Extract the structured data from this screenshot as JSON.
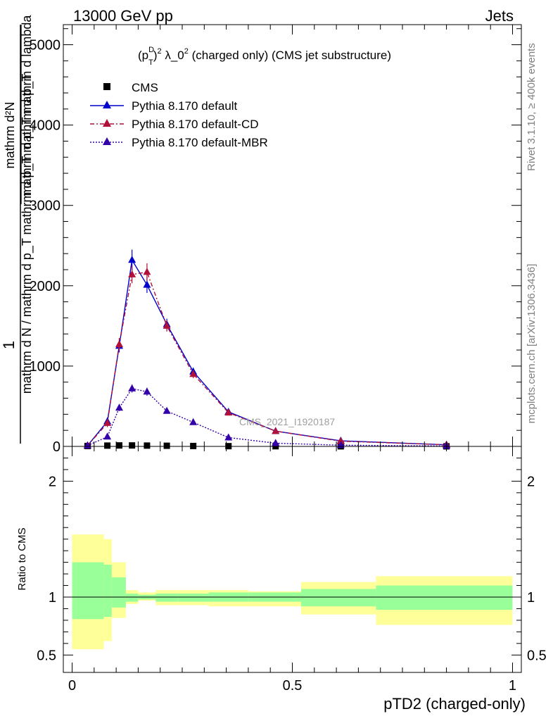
{
  "header": {
    "left": "13000 GeV pp",
    "right": "Jets"
  },
  "plot_title": {
    "prefix": "(p",
    "sup1": "D",
    "sub1": "T",
    "mid": ")",
    "sup2": "2",
    "lambda_text": " λ_0",
    "sup3": "2",
    "suffix": " (charged only) (CMS jet substructure)"
  },
  "ylabel": {
    "one": "1",
    "denominator": "mathrm d N / mathrm d p_T mathrm d p_T mathrm d p_T",
    "numerator_top": "mathrm d²N",
    "numerator_bottom": "mathrm d p_T mathrm d lambda"
  },
  "side_labels": {
    "rivet": "Rivet 3.1.10, ≥ 400k events",
    "mcplots": "mcplots.cern.ch [arXiv:1306.3436]"
  },
  "watermark": "CMS_2021_I1920187",
  "ratio_ylabel": "Ratio to CMS",
  "xlabel": "pTD2 (charged-only)",
  "legend": [
    {
      "label": "CMS"
    },
    {
      "label": "Pythia 8.170 default"
    },
    {
      "label": "Pythia 8.170 default-CD"
    },
    {
      "label": "Pythia 8.170 default-MBR"
    }
  ],
  "colors": {
    "cms": "#000000",
    "default": "#0000cc",
    "cd": "#b0103a",
    "mbr": "#3300aa",
    "band_inner": "#99ff99",
    "band_outer": "#ffff99"
  },
  "chart_data": {
    "type": "line",
    "xlim": [
      -0.02,
      1.02
    ],
    "main_ylim": [
      0,
      5250
    ],
    "main_yticks": [
      0,
      1000,
      2000,
      3000,
      4000,
      5000
    ],
    "main_ytick_labels": [
      "0",
      "1000",
      "2000",
      "3000",
      "4000",
      "5000"
    ],
    "ratio_ylim": [
      0.35,
      2.3
    ],
    "ratio_yticks": [
      0.5,
      1,
      2
    ],
    "ratio_ytick_labels": [
      "0.5",
      "1",
      "2"
    ],
    "xticks": [
      0,
      0.5,
      1
    ],
    "xtick_labels": [
      "0",
      "0.5",
      "1"
    ],
    "x": [
      0.035,
      0.08,
      0.107,
      0.136,
      0.17,
      0.215,
      0.275,
      0.355,
      0.462,
      0.61,
      0.85
    ],
    "series": [
      {
        "name": "CMS",
        "style": "cms",
        "values": [
          5,
          10,
          12,
          12,
          10,
          8,
          5,
          3,
          2,
          1,
          1
        ]
      },
      {
        "name": "Pythia 8.170 default",
        "style": "default",
        "values": [
          10,
          310,
          1250,
          2320,
          2010,
          1520,
          930,
          430,
          190,
          70,
          20
        ],
        "errors": [
          10,
          50,
          80,
          130,
          100,
          70,
          50,
          30,
          15,
          8,
          3
        ]
      },
      {
        "name": "Pythia 8.170 default-CD",
        "style": "cd",
        "values": [
          10,
          290,
          1270,
          2140,
          2170,
          1500,
          900,
          420,
          190,
          65,
          20
        ],
        "errors": [
          10,
          50,
          80,
          110,
          110,
          70,
          50,
          30,
          15,
          8,
          3
        ]
      },
      {
        "name": "Pythia 8.170 default-MBR",
        "style": "mbr",
        "values": [
          10,
          120,
          480,
          720,
          680,
          440,
          300,
          110,
          40,
          15,
          5
        ],
        "errors": [
          5,
          20,
          40,
          50,
          50,
          30,
          20,
          10,
          6,
          3,
          1
        ]
      }
    ],
    "ratio_bands": [
      {
        "x0": 0.0,
        "x1": 0.072,
        "inner": [
          0.81,
          1.3
        ],
        "outer": [
          0.55,
          1.54
        ]
      },
      {
        "x0": 0.072,
        "x1": 0.09,
        "inner": [
          0.83,
          1.28
        ],
        "outer": [
          0.62,
          1.5
        ]
      },
      {
        "x0": 0.09,
        "x1": 0.122,
        "inner": [
          0.91,
          1.17
        ],
        "outer": [
          0.82,
          1.3
        ]
      },
      {
        "x0": 0.122,
        "x1": 0.15,
        "inner": [
          0.96,
          1.03
        ],
        "outer": [
          0.94,
          1.06
        ]
      },
      {
        "x0": 0.15,
        "x1": 0.19,
        "inner": [
          0.98,
          1.02
        ],
        "outer": [
          0.97,
          1.04
        ]
      },
      {
        "x0": 0.19,
        "x1": 0.24,
        "inner": [
          0.96,
          1.03
        ],
        "outer": [
          0.93,
          1.06
        ]
      },
      {
        "x0": 0.24,
        "x1": 0.31,
        "inner": [
          0.96,
          1.03
        ],
        "outer": [
          0.93,
          1.06
        ]
      },
      {
        "x0": 0.31,
        "x1": 0.4,
        "inner": [
          0.96,
          1.04
        ],
        "outer": [
          0.92,
          1.06
        ]
      },
      {
        "x0": 0.4,
        "x1": 0.52,
        "inner": [
          0.96,
          1.04
        ],
        "outer": [
          0.92,
          1.05
        ]
      },
      {
        "x0": 0.52,
        "x1": 0.69,
        "inner": [
          0.92,
          1.07
        ],
        "outer": [
          0.85,
          1.13
        ]
      },
      {
        "x0": 0.69,
        "x1": 1.0,
        "inner": [
          0.89,
          1.1
        ],
        "outer": [
          0.76,
          1.18
        ]
      }
    ]
  }
}
